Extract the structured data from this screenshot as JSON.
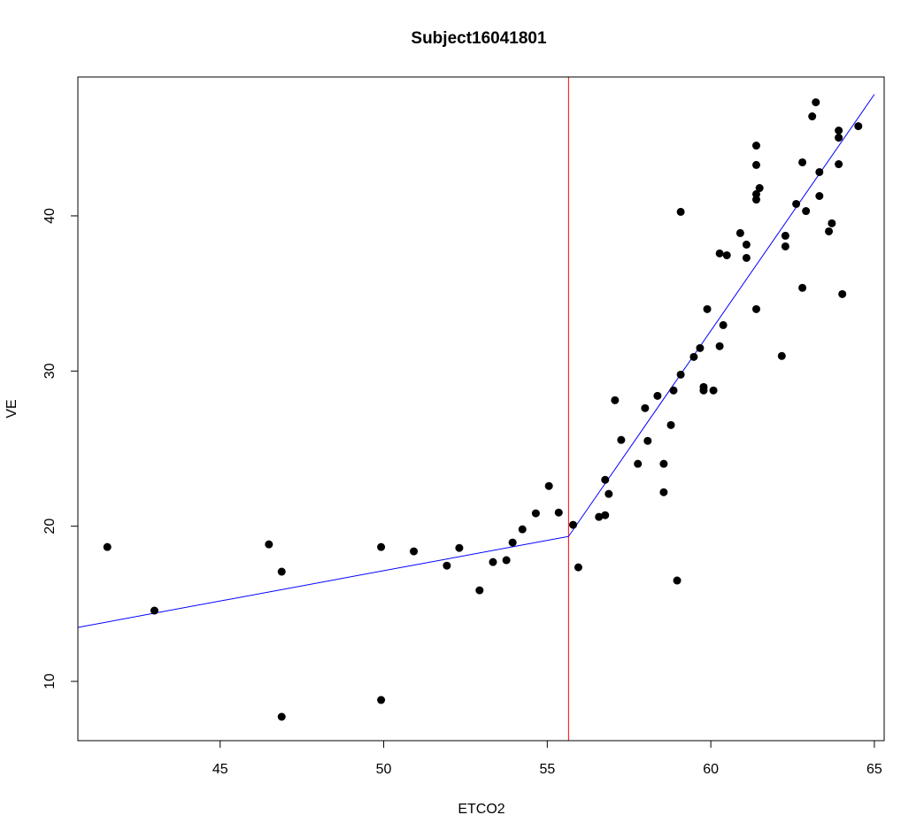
{
  "chart_data": {
    "type": "scatter",
    "title": "Subject16041801",
    "x_label": "ETCO2",
    "y_label": "VE",
    "xlim": [
      40.65,
      65.3
    ],
    "ylim": [
      6.18,
      48.95
    ],
    "xticks": [
      45,
      50,
      55,
      60,
      65
    ],
    "yticks": [
      10,
      20,
      30,
      40
    ],
    "points": {
      "color": "#000000",
      "x": [
        41.55,
        42.99,
        46.49,
        46.88,
        46.88,
        49.92,
        49.92,
        50.92,
        51.93,
        52.31,
        52.93,
        53.34,
        53.75,
        53.94,
        54.24,
        54.65,
        55.05,
        55.35,
        55.79,
        55.95,
        56.58,
        56.77,
        56.77,
        56.88,
        57.07,
        57.26,
        57.77,
        57.99,
        58.07,
        58.37,
        58.56,
        58.56,
        58.78,
        58.86,
        58.97,
        59.08,
        59.08,
        59.48,
        59.67,
        59.78,
        59.78,
        59.89,
        60.08,
        60.27,
        60.27,
        60.38,
        60.49,
        60.9,
        61.09,
        61.09,
        61.39,
        61.39,
        61.39,
        61.39,
        61.39,
        61.49,
        62.17,
        62.28,
        62.28,
        62.61,
        62.8,
        62.8,
        62.91,
        63.1,
        63.21,
        63.32,
        63.32,
        63.61,
        63.7,
        63.91,
        63.91,
        63.91,
        64.02,
        64.51
      ],
      "y": [
        18.66,
        14.56,
        18.83,
        17.07,
        7.72,
        18.66,
        8.8,
        18.38,
        17.46,
        18.6,
        15.87,
        17.69,
        17.81,
        18.95,
        19.8,
        20.83,
        22.59,
        20.88,
        20.09,
        17.35,
        20.6,
        20.71,
        22.99,
        22.08,
        28.12,
        25.56,
        24.02,
        27.61,
        25.5,
        28.4,
        24.02,
        22.19,
        26.52,
        28.75,
        16.5,
        29.77,
        40.26,
        30.91,
        31.48,
        28.97,
        28.75,
        33.99,
        28.75,
        31.6,
        37.58,
        32.96,
        37.46,
        38.89,
        37.29,
        38.15,
        33.99,
        41.05,
        41.4,
        43.28,
        44.53,
        41.79,
        30.97,
        38.03,
        38.72,
        40.77,
        35.36,
        43.45,
        40.31,
        46.41,
        47.32,
        42.82,
        41.28,
        39.0,
        39.52,
        45.04,
        45.5,
        43.33,
        34.96,
        45.78
      ]
    },
    "fit": {
      "color": "#0000ff",
      "x": [
        40.65,
        55.65,
        65
      ],
      "y": [
        13.48,
        19.34,
        47.83
      ]
    },
    "breakpoint": {
      "color": "#ff0000",
      "x": 55.65
    }
  }
}
